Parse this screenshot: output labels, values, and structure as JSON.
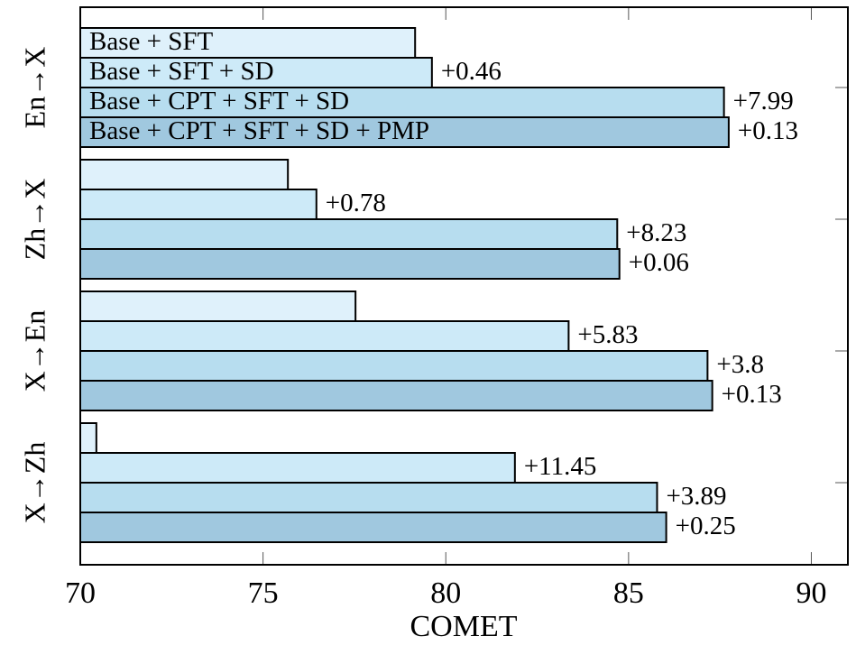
{
  "chart_data": {
    "type": "hbar",
    "x_label": "COMET",
    "categories": [
      "En→X",
      "Zh→X",
      "X→En",
      "X→Zh"
    ],
    "xlim": [
      70,
      91
    ],
    "xticks": [
      70,
      75,
      80,
      85,
      90
    ],
    "series": [
      {
        "name": "Base + SFT",
        "color": "#dff1fb",
        "values": [
          79.16,
          75.68,
          77.53,
          70.44
        ]
      },
      {
        "name": "Base + SFT + SD",
        "color": "#cdeaf8",
        "values": [
          79.62,
          76.46,
          83.36,
          81.89
        ],
        "labels": [
          "+0.46",
          "+0.78",
          "+5.83",
          "+11.45"
        ]
      },
      {
        "name": "Base + CPT + SFT + SD",
        "color": "#b7ddef",
        "values": [
          87.61,
          84.69,
          87.16,
          85.78
        ],
        "labels": [
          "+7.99",
          "+8.23",
          "+3.8",
          "+3.89"
        ]
      },
      {
        "name": "Base + CPT + SFT + SD + PMP",
        "color": "#a0c8df",
        "values": [
          87.74,
          84.75,
          87.29,
          86.03
        ],
        "labels": [
          "+0.13",
          "+0.06",
          "+0.13",
          "+0.25"
        ]
      }
    ]
  }
}
